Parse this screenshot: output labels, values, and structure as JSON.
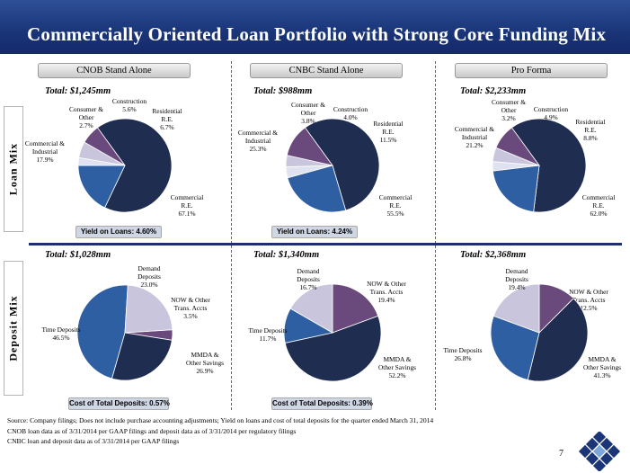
{
  "title": "Commercially Oriented Loan Portfolio with Strong Core Funding Mix",
  "row_labels": {
    "loan": "Loan Mix",
    "deposit": "Deposit Mix"
  },
  "columns": [
    {
      "header": "CNOB Stand Alone",
      "loan_total": "Total:  $1,245mm",
      "deposit_total": "Total:  $1,028mm",
      "loan_callout": "Yield on Loans: 4.60%",
      "deposit_callout": "Cost of Total Deposits: 0.57%"
    },
    {
      "header": "CNBC Stand Alone",
      "loan_total": "Total:  $988mm",
      "deposit_total": "Total:  $1,340mm",
      "loan_callout": "Yield on Loans: 4.24%",
      "deposit_callout": "Cost of Total Deposits: 0.39%"
    },
    {
      "header": "Pro Forma",
      "loan_total": "Total:  $2,233mm",
      "deposit_total": "Total:  $2,368mm",
      "loan_callout": "",
      "deposit_callout": ""
    }
  ],
  "colors": {
    "commercial_re": "#1f2d50",
    "commercial_industrial": "#2e5fa3",
    "consumer_other": "#dfe3f1",
    "construction": "#c8c5dd",
    "residential_re": "#6a4a7c",
    "time_deposits": "#2e5fa3",
    "mmda": "#1f2d50",
    "now_trans": "#6a4a7c",
    "demand": "#c8c5dd",
    "title_bar": "#1a3578"
  },
  "chart_data": [
    {
      "type": "pie",
      "title": "CNOB Stand Alone - Loan Mix",
      "slices": [
        {
          "label": [
            "Commercial",
            "R.E.",
            "67.1%"
          ],
          "value": 67.1,
          "color_key": "commercial_re"
        },
        {
          "label": [
            "Commercial &",
            "Industrial",
            "17.9%"
          ],
          "value": 17.9,
          "color_key": "commercial_industrial"
        },
        {
          "label": [
            "Consumer &",
            "Other",
            "2.7%"
          ],
          "value": 2.7,
          "color_key": "consumer_other"
        },
        {
          "label": [
            "Construction",
            "5.6%"
          ],
          "value": 5.6,
          "color_key": "construction"
        },
        {
          "label": [
            "Residential",
            "R.E.",
            "6.7%"
          ],
          "value": 6.7,
          "color_key": "residential_re"
        }
      ]
    },
    {
      "type": "pie",
      "title": "CNBC Stand Alone - Loan Mix",
      "slices": [
        {
          "label": [
            "Commercial",
            "R.E.",
            "55.5%"
          ],
          "value": 55.5,
          "color_key": "commercial_re"
        },
        {
          "label": [
            "Commercial &",
            "Industrial",
            "25.3%"
          ],
          "value": 25.3,
          "color_key": "commercial_industrial"
        },
        {
          "label": [
            "Consumer &",
            "Other",
            "3.8%"
          ],
          "value": 3.8,
          "color_key": "consumer_other"
        },
        {
          "label": [
            "Construction",
            "4.0%"
          ],
          "value": 4.0,
          "color_key": "construction"
        },
        {
          "label": [
            "Residential",
            "R.E.",
            "11.5%"
          ],
          "value": 11.5,
          "color_key": "residential_re"
        }
      ]
    },
    {
      "type": "pie",
      "title": "Pro Forma - Loan Mix",
      "slices": [
        {
          "label": [
            "Commercial",
            "R.E.",
            "62.0%"
          ],
          "value": 62.0,
          "color_key": "commercial_re"
        },
        {
          "label": [
            "Commercial &",
            "Industrial",
            "21.2%"
          ],
          "value": 21.2,
          "color_key": "commercial_industrial"
        },
        {
          "label": [
            "Consumer &",
            "Other",
            "3.2%"
          ],
          "value": 3.2,
          "color_key": "consumer_other"
        },
        {
          "label": [
            "Construction",
            "4.9%"
          ],
          "value": 4.9,
          "color_key": "construction"
        },
        {
          "label": [
            "Residential",
            "R.E.",
            "8.8%"
          ],
          "value": 8.8,
          "color_key": "residential_re"
        }
      ]
    },
    {
      "type": "pie",
      "title": "CNOB Stand Alone - Deposit Mix",
      "slices": [
        {
          "label": [
            "NOW & Other",
            "Trans. Accts",
            "3.5%"
          ],
          "value": 3.5,
          "color_key": "now_trans"
        },
        {
          "label": [
            "MMDA &",
            "Other Savings",
            "26.9%"
          ],
          "value": 26.9,
          "color_key": "mmda"
        },
        {
          "label": [
            "Time Deposits",
            "46.5%"
          ],
          "value": 46.5,
          "color_key": "time_deposits"
        },
        {
          "label": [
            "Demand",
            "Deposits",
            "23.0%"
          ],
          "value": 23.0,
          "color_key": "demand"
        }
      ]
    },
    {
      "type": "pie",
      "title": "CNBC Stand Alone - Deposit Mix",
      "slices": [
        {
          "label": [
            "NOW & Other",
            "Trans. Accts",
            "19.4%"
          ],
          "value": 19.4,
          "color_key": "now_trans"
        },
        {
          "label": [
            "MMDA &",
            "Other Savings",
            "52.2%"
          ],
          "value": 52.2,
          "color_key": "mmda"
        },
        {
          "label": [
            "Time Deposits",
            "11.7%"
          ],
          "value": 11.7,
          "color_key": "time_deposits"
        },
        {
          "label": [
            "Demand",
            "Deposits",
            "16.7%"
          ],
          "value": 16.7,
          "color_key": "demand"
        }
      ]
    },
    {
      "type": "pie",
      "title": "Pro Forma - Deposit Mix",
      "slices": [
        {
          "label": [
            "NOW & Other",
            "Trans. Accts",
            "12.5%"
          ],
          "value": 12.5,
          "color_key": "now_trans"
        },
        {
          "label": [
            "MMDA &",
            "Other Savings",
            "41.3%"
          ],
          "value": 41.3,
          "color_key": "mmda"
        },
        {
          "label": [
            "Time Deposits",
            "26.8%"
          ],
          "value": 26.8,
          "color_key": "time_deposits"
        },
        {
          "label": [
            "Demand",
            "Deposits",
            "19.4%"
          ],
          "value": 19.4,
          "color_key": "demand"
        }
      ]
    }
  ],
  "footnotes": [
    "Source: Company filings; Does not include purchase accounting adjustments; Yield on loans and cost of total deposits for the quarter ended March 31, 2014",
    "CNOB loan data as of 3/31/2014 per GAAP filings and deposit data as of 3/31/2014 per regulatory filings",
    "CNBC loan and deposit data as of 3/31/2014 per GAAP filings"
  ],
  "page_number": "7"
}
